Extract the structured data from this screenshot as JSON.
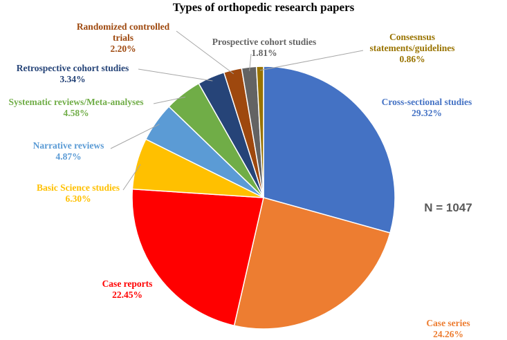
{
  "chart_data": {
    "type": "pie",
    "title": "Types of orthopedic research papers",
    "annotation": "N = 1047",
    "start_angle_deg": 0,
    "direction": "clockwise",
    "slices": [
      {
        "name": "Cross-sectional studies",
        "label_lines": [
          "Cross-sectional studies"
        ],
        "value": 29.32,
        "value_text": "29.32%",
        "color": "#4472C4",
        "label_color": "#4472C4"
      },
      {
        "name": "Case series",
        "label_lines": [
          "Case series"
        ],
        "value": 24.26,
        "value_text": "24.26%",
        "color": "#ED7D31",
        "label_color": "#ED7D31"
      },
      {
        "name": "Case reports",
        "label_lines": [
          "Case reports"
        ],
        "value": 22.45,
        "value_text": "22.45%",
        "color": "#FF0000",
        "label_color": "#FF0000"
      },
      {
        "name": "Basic Science studies",
        "label_lines": [
          "Basic Science studies"
        ],
        "value": 6.3,
        "value_text": "6.30%",
        "color": "#FFC000",
        "label_color": "#FFC000"
      },
      {
        "name": "Narrative reviews",
        "label_lines": [
          "Narrative reviews"
        ],
        "value": 4.87,
        "value_text": "4.87%",
        "color": "#5B9BD5",
        "label_color": "#5B9BD5"
      },
      {
        "name": "Systematic reviews/Meta-analyses",
        "label_lines": [
          "Systematic reviews/Meta-analyses"
        ],
        "value": 4.58,
        "value_text": "4.58%",
        "color": "#70AD47",
        "label_color": "#70AD47"
      },
      {
        "name": "Retrospective cohort studies",
        "label_lines": [
          "Retrospective cohort studies"
        ],
        "value": 3.34,
        "value_text": "3.34%",
        "color": "#264478",
        "label_color": "#264478"
      },
      {
        "name": "Randomized controlled trials",
        "label_lines": [
          "Randomized controlled",
          "trials"
        ],
        "value": 2.2,
        "value_text": "2.20%",
        "color": "#9E480E",
        "label_color": "#9E480E"
      },
      {
        "name": "Prospective cohort studies",
        "label_lines": [
          "Prospective cohort studies"
        ],
        "value": 1.81,
        "value_text": "1.81%",
        "color": "#636363",
        "label_color": "#636363"
      },
      {
        "name": "Consesnsus statements/guidelines",
        "label_lines": [
          "Consesnsus",
          "statements/guidelines"
        ],
        "value": 0.86,
        "value_text": "0.86%",
        "color": "#997300",
        "label_color": "#997300"
      }
    ]
  }
}
